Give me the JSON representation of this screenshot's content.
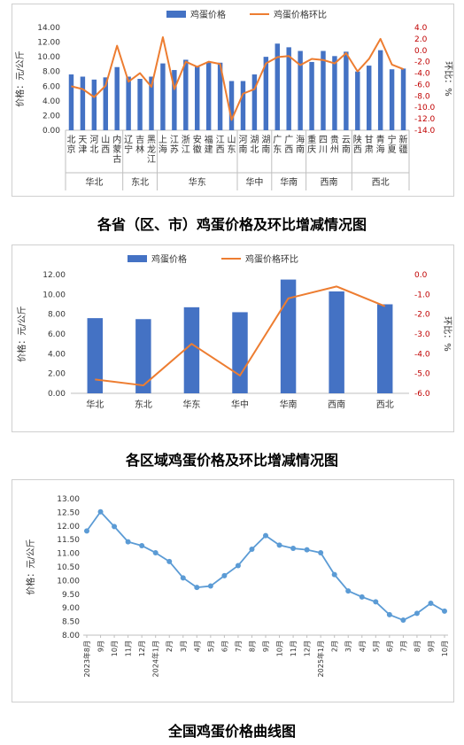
{
  "chart_data": [
    {
      "type": "bar",
      "title": "各省（区、市）鸡蛋价格及环比增减情况图",
      "ylabel": "价格：元/公斤",
      "y2label": "环比：%",
      "ylim": [
        0,
        14
      ],
      "y2lim": [
        -14,
        4
      ],
      "yticks": [
        "0.00",
        "2.00",
        "4.00",
        "6.00",
        "8.00",
        "10.00",
        "12.00",
        "14.00"
      ],
      "y2ticks": [
        "4.0",
        "2.0",
        "0.0",
        "-2.0",
        "-4.0",
        "-6.0",
        "-8.0",
        "-10.0",
        "-12.0",
        "-14.0"
      ],
      "legend_position": "top",
      "categories": [
        "北京",
        "天津",
        "河北",
        "山西",
        "内蒙古",
        "辽宁",
        "吉林",
        "黑龙江",
        "上海",
        "江苏",
        "浙江",
        "安徽",
        "福建",
        "江西",
        "山东",
        "河南",
        "湖北",
        "湖南",
        "广东",
        "广西",
        "海南",
        "重庆",
        "四川",
        "贵州",
        "云南",
        "陕西",
        "甘肃",
        "青海",
        "宁夏",
        "新疆"
      ],
      "groups": [
        {
          "name": "华北",
          "count": 5
        },
        {
          "name": "东北",
          "count": 3
        },
        {
          "name": "华东",
          "count": 7
        },
        {
          "name": "华中",
          "count": 3
        },
        {
          "name": "华南",
          "count": 3
        },
        {
          "name": "西南",
          "count": 4
        },
        {
          "name": "西北",
          "count": 5
        }
      ],
      "series": [
        {
          "name": "鸡蛋价格",
          "kind": "bar",
          "axis": "left",
          "color": "#4472c4",
          "values": [
            7.6,
            7.3,
            6.9,
            7.2,
            8.6,
            7.3,
            7.0,
            7.3,
            9.1,
            8.2,
            9.6,
            8.7,
            9.3,
            9.2,
            6.7,
            6.7,
            7.6,
            10.0,
            11.8,
            11.3,
            10.8,
            9.3,
            10.8,
            10.1,
            10.7,
            8.0,
            8.8,
            10.9,
            8.3,
            8.4
          ]
        },
        {
          "name": "鸡蛋价格环比",
          "kind": "line",
          "axis": "right",
          "color": "#ed7d31",
          "values": [
            -6.3,
            -6.8,
            -8.2,
            -6.2,
            0.8,
            -5.5,
            -4.0,
            -6.4,
            2.3,
            -6.8,
            -2.0,
            -2.9,
            -2.0,
            -2.4,
            -12.2,
            -7.6,
            -6.8,
            -2.3,
            -1.2,
            -1.0,
            -2.6,
            -1.5,
            -1.7,
            -2.3,
            -0.5,
            -3.7,
            -1.5,
            2.0,
            -2.5,
            -3.3
          ]
        }
      ]
    },
    {
      "type": "bar",
      "title": "各区域鸡蛋价格及环比增减情况图",
      "ylabel": "价格：元/公斤",
      "y2label": "环比：%",
      "ylim": [
        0,
        12
      ],
      "y2lim": [
        -6,
        0
      ],
      "yticks": [
        "0.00",
        "2.00",
        "4.00",
        "6.00",
        "8.00",
        "10.00",
        "12.00"
      ],
      "y2ticks": [
        "0.0",
        "-1.0",
        "-2.0",
        "-3.0",
        "-4.0",
        "-5.0",
        "-6.0"
      ],
      "legend_position": "top",
      "categories": [
        "华北",
        "东北",
        "华东",
        "华中",
        "华南",
        "西南",
        "西北"
      ],
      "series": [
        {
          "name": "鸡蛋价格",
          "kind": "bar",
          "axis": "left",
          "color": "#4472c4",
          "values": [
            7.6,
            7.5,
            8.7,
            8.2,
            11.5,
            10.3,
            9.0
          ]
        },
        {
          "name": "鸡蛋价格环比",
          "kind": "line",
          "axis": "right",
          "color": "#ed7d31",
          "values": [
            -5.3,
            -5.6,
            -3.5,
            -5.1,
            -1.2,
            -0.6,
            -1.6
          ]
        }
      ]
    },
    {
      "type": "line",
      "title": "全国鸡蛋价格曲线图",
      "ylabel": "价格：元/公斤",
      "ylim": [
        8,
        13
      ],
      "yticks": [
        "8.00",
        "8.50",
        "9.00",
        "9.50",
        "10.00",
        "10.50",
        "11.00",
        "11.50",
        "12.00",
        "12.50",
        "13.00"
      ],
      "x": [
        "2023年8月",
        "9月",
        "10月",
        "11月",
        "12月",
        "2024年1月",
        "2月",
        "3月",
        "4月",
        "5月",
        "6月",
        "7月",
        "8月",
        "9月",
        "10月",
        "11月",
        "12月",
        "2025年1月",
        "2月",
        "3月",
        "4月",
        "5月",
        "6月",
        "7月",
        "8月",
        "9月",
        "10月"
      ],
      "series": [
        {
          "name": "",
          "color": "#5b9bd5",
          "values": [
            11.82,
            12.52,
            11.98,
            11.42,
            11.28,
            11.02,
            10.7,
            10.1,
            9.75,
            9.8,
            10.18,
            10.55,
            11.15,
            11.65,
            11.3,
            11.18,
            11.13,
            11.02,
            10.22,
            9.62,
            9.4,
            9.22,
            8.75,
            8.55,
            8.8,
            9.17,
            8.88
          ]
        }
      ]
    }
  ],
  "colors": {
    "bar": "#4472c4",
    "mom_line": "#ed7d31",
    "trend_line": "#5b9bd5",
    "right_axis_text": "#c00000"
  }
}
